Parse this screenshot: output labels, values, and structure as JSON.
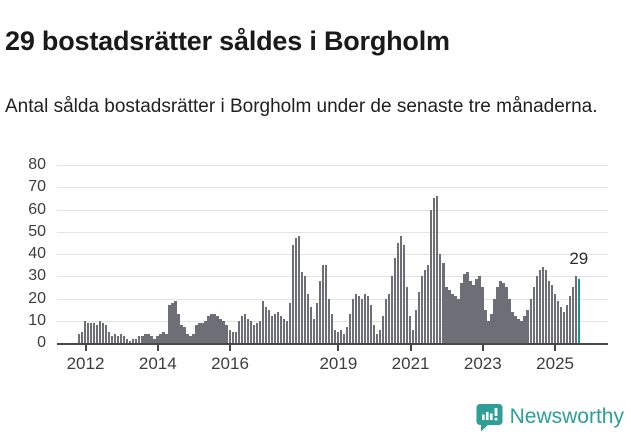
{
  "title": "29 bostadsrätter såldes i Borgholm",
  "subtitle": "Antal sålda bostadsrätter i Borgholm under de senaste tre månaderna.",
  "annotation": {
    "label": "29"
  },
  "footer": {
    "brand": "Newsworthy",
    "icon": "newsworthy-bar-chart-bubble-icon"
  },
  "colors": {
    "bar": "#6e6e76",
    "highlight": "#12998f",
    "axis": "#474747",
    "grid": "#e3e3e3",
    "tick_label": "#3d3d3d",
    "brand": "#2f9e98",
    "background": "#ffffff"
  },
  "chart_data": {
    "type": "bar",
    "title": "29 bostadsrätter såldes i Borgholm",
    "xlabel": "",
    "ylabel": "",
    "x_start": "2011-11",
    "frequency": "monthly",
    "ylim": [
      0,
      80
    ],
    "yticks": [
      0,
      10,
      20,
      30,
      40,
      50,
      60,
      70,
      80
    ],
    "grid": "horizontal",
    "legend": "none",
    "highlight_last": true,
    "highlight_value": 29,
    "highlight_label": "29",
    "xticks": [
      {
        "label": "2012",
        "month_index": 2
      },
      {
        "label": "2014",
        "month_index": 26
      },
      {
        "label": "2016",
        "month_index": 50
      },
      {
        "label": "2019",
        "month_index": 86
      },
      {
        "label": "2021",
        "month_index": 110
      },
      {
        "label": "2023",
        "month_index": 134
      },
      {
        "label": "2025",
        "month_index": 158
      }
    ],
    "values": [
      4,
      5,
      10,
      9,
      9,
      9,
      8,
      10,
      9,
      8,
      5,
      3,
      4,
      3,
      4,
      3,
      2,
      1,
      2,
      2,
      3,
      3,
      4,
      4,
      3,
      2,
      3,
      4,
      5,
      4,
      17,
      18,
      19,
      13,
      8,
      7,
      4,
      3,
      4,
      8,
      9,
      9,
      10,
      12,
      13,
      13,
      12,
      11,
      10,
      8,
      6,
      5,
      5,
      10,
      12,
      13,
      11,
      10,
      8,
      9,
      10,
      19,
      16,
      15,
      12,
      13,
      14,
      12,
      11,
      10,
      18,
      44,
      47,
      48,
      32,
      30,
      22,
      16,
      11,
      18,
      28,
      35,
      35,
      20,
      13,
      6,
      5,
      6,
      4,
      7,
      13,
      20,
      22,
      21,
      20,
      22,
      21,
      17,
      8,
      4,
      6,
      12,
      20,
      22,
      30,
      38,
      45,
      48,
      44,
      25,
      12,
      6,
      15,
      23,
      30,
      33,
      35,
      60,
      65,
      66,
      40,
      36,
      25,
      24,
      22,
      21,
      20,
      27,
      31,
      32,
      28,
      26,
      29,
      30,
      25,
      15,
      10,
      13,
      20,
      25,
      28,
      27,
      25,
      20,
      14,
      12,
      11,
      10,
      12,
      15,
      20,
      25,
      30,
      33,
      34,
      33,
      28,
      26,
      22,
      19,
      16,
      14,
      17,
      21,
      25,
      30,
      29
    ]
  }
}
